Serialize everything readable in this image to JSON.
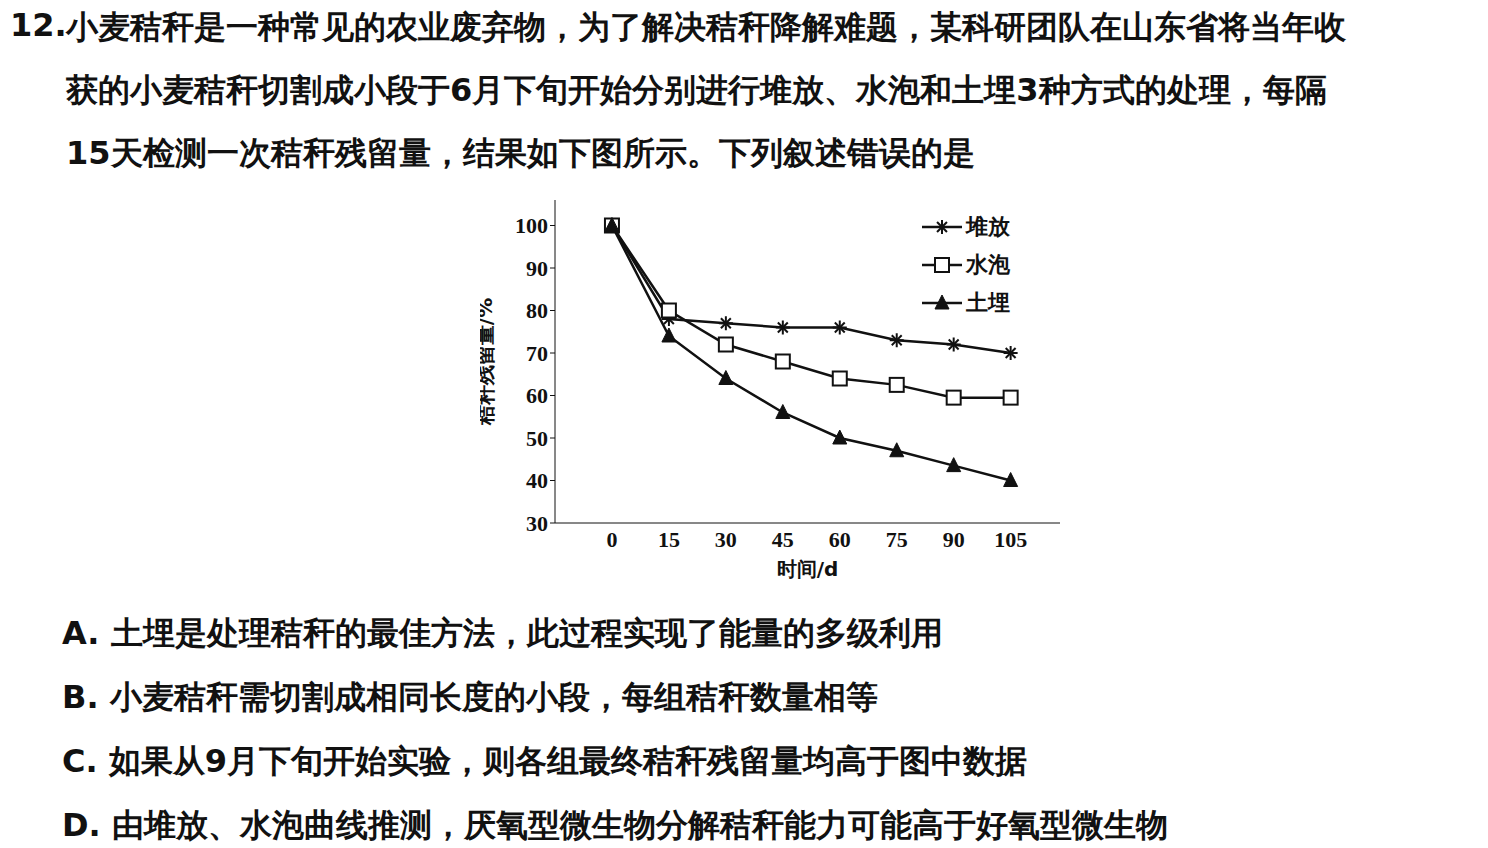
{
  "question": {
    "number": "12.",
    "lines": [
      "小麦秸秆是一种常见的农业废弃物，为了解决秸秆降解难题，某科研团队在山东省将当年收",
      "获的小麦秸秆切割成小段于6月下旬开始分别进行堆放、水泡和土埋3种方式的处理，每隔",
      "15天检测一次秸秆残留量，结果如下图所示。下列叙述错误的是"
    ]
  },
  "chart_data": {
    "type": "line",
    "x": [
      0,
      15,
      30,
      45,
      60,
      75,
      90,
      105
    ],
    "xlim": [
      -15,
      118
    ],
    "xticks": [
      0,
      15,
      30,
      45,
      60,
      75,
      90,
      105
    ],
    "ylim": [
      30,
      106
    ],
    "yticks": [
      30,
      40,
      50,
      60,
      70,
      80,
      90,
      100
    ],
    "x_label": "时间/d",
    "y_label": "秸秆残留量/%",
    "legend": "top-right",
    "series": [
      {
        "name": "堆放",
        "color": "#111111",
        "marker": "star",
        "values": [
          100,
          78,
          77,
          76,
          76,
          73,
          72,
          70
        ]
      },
      {
        "name": "水泡",
        "color": "#111111",
        "marker": "square",
        "values": [
          100,
          80,
          72,
          68,
          64,
          62.5,
          59.5,
          59.5
        ]
      },
      {
        "name": "土埋",
        "color": "#111111",
        "marker": "triangle",
        "values": [
          100,
          74,
          64,
          56,
          50,
          47,
          43.5,
          40
        ]
      }
    ]
  },
  "options": [
    {
      "label": "A.",
      "text": "土埋是处理秸秆的最佳方法，此过程实现了能量的多级利用"
    },
    {
      "label": "B.",
      "text": "小麦秸秆需切割成相同长度的小段，每组秸秆数量相等"
    },
    {
      "label": "C.",
      "text": "如果从9月下旬开始实验，则各组最终秸秆残留量均高于图中数据"
    },
    {
      "label": "D.",
      "text": "由堆放、水泡曲线推测，厌氧型微生物分解秸秆能力可能高于好氧型微生物"
    }
  ]
}
